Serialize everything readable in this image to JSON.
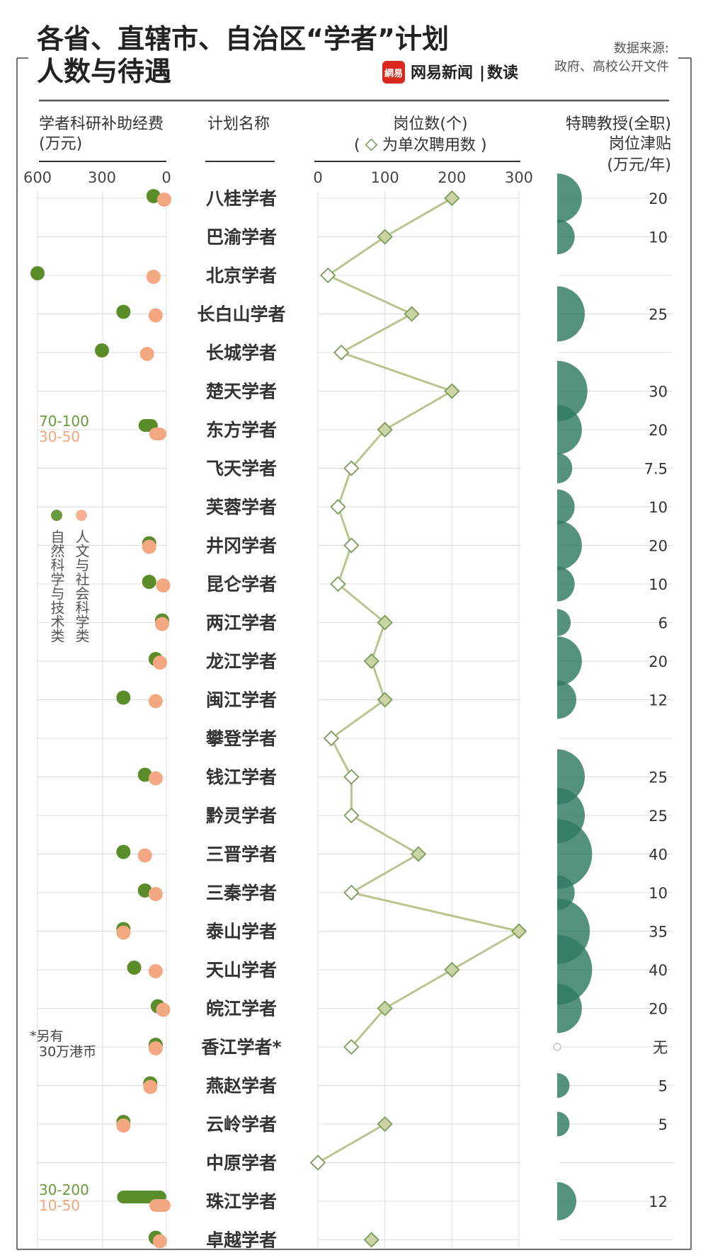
{
  "header": {
    "title_line1": "各省、直辖市、自治区“学者”计划",
    "title_line2": "人数与待遇",
    "source_label": "数据来源:",
    "source_text": "政府、高校公开文件",
    "logo_badge": "網易",
    "logo_text": "网易新闻",
    "logo_sep": "|",
    "logo_sub": "数读"
  },
  "columns": {
    "funding_title_1": "学者科研补助经费",
    "funding_title_2": "(万元)",
    "name_title": "计划名称",
    "posts_title": "岗位数(个)",
    "posts_subtitle_pre": "(",
    "posts_subtitle_post": "为单次聘用数 )",
    "allowance_title_1": "特聘教授(全职)",
    "allowance_title_2": "岗位津贴",
    "allowance_title_3": "(万元/年)"
  },
  "legend": {
    "natural": "自然科学与技术类",
    "humanities": "人文与社会科学类"
  },
  "notes": {
    "dongfang_green": "70-100",
    "dongfang_orange": "30-50",
    "xiangjiang_1": "*另有",
    "xiangjiang_2": "30万港币",
    "zhujiang_green": "30-200",
    "zhujiang_orange": "10-50"
  },
  "chart_data": {
    "type": "multi-panel dot/line/bubble",
    "colors": {
      "green": "#5b8c2a",
      "orange": "#f4a882",
      "line": "#b9c48e",
      "bubble": "#2f7a62",
      "grid": "#dcdcdc"
    },
    "funding_axis": {
      "label": "学者科研补助经费(万元)",
      "ticks": [
        "600",
        "300",
        "0"
      ],
      "range": [
        600,
        0
      ]
    },
    "posts_axis": {
      "label": "岗位数(个)",
      "ticks": [
        "0",
        "100",
        "200",
        "300"
      ],
      "range": [
        0,
        300
      ]
    },
    "rows": [
      {
        "name": "八桂学者",
        "natural": 60,
        "humanities": 10,
        "posts": 200,
        "allowance": 20,
        "allowance_label": "20"
      },
      {
        "name": "巴渝学者",
        "natural": null,
        "humanities": null,
        "posts": 100,
        "allowance": 10,
        "allowance_label": "10"
      },
      {
        "name": "北京学者",
        "natural": 600,
        "humanities": 60,
        "posts": 15,
        "allowance": null,
        "allowance_label": ""
      },
      {
        "name": "长白山学者",
        "natural": 200,
        "humanities": 50,
        "posts": 140,
        "allowance": 25,
        "allowance_label": "25"
      },
      {
        "name": "长城学者",
        "natural": 300,
        "humanities": 90,
        "posts": 35,
        "allowance": null,
        "allowance_label": ""
      },
      {
        "name": "楚天学者",
        "natural": null,
        "humanities": null,
        "posts": 200,
        "allowance": 30,
        "allowance_label": "30"
      },
      {
        "name": "东方学者",
        "natural": 85,
        "humanities": 35,
        "posts": 100,
        "allowance": 20,
        "allowance_label": "20",
        "natural_range": [
          70,
          100
        ],
        "humanities_range": [
          30,
          50
        ]
      },
      {
        "name": "飞天学者",
        "natural": null,
        "humanities": null,
        "posts": 50,
        "allowance": 7.5,
        "allowance_label": "7.5"
      },
      {
        "name": "芙蓉学者",
        "natural": null,
        "humanities": null,
        "posts": 30,
        "allowance": 10,
        "allowance_label": "10"
      },
      {
        "name": "井冈学者",
        "natural": 80,
        "humanities": 80,
        "posts": 50,
        "allowance": 20,
        "allowance_label": "20"
      },
      {
        "name": "昆仑学者",
        "natural": 80,
        "humanities": 15,
        "posts": 30,
        "allowance": 10,
        "allowance_label": "10"
      },
      {
        "name": "两江学者",
        "natural": 20,
        "humanities": 20,
        "posts": 100,
        "allowance": 6,
        "allowance_label": "6"
      },
      {
        "name": "龙江学者",
        "natural": 50,
        "humanities": 30,
        "posts": 80,
        "allowance": 20,
        "allowance_label": "20"
      },
      {
        "name": "闽江学者",
        "natural": 200,
        "humanities": 50,
        "posts": 100,
        "allowance": 12,
        "allowance_label": "12"
      },
      {
        "name": "攀登学者",
        "natural": null,
        "humanities": null,
        "posts": 20,
        "allowance": null,
        "allowance_label": ""
      },
      {
        "name": "钱江学者",
        "natural": 100,
        "humanities": 50,
        "posts": 50,
        "allowance": 25,
        "allowance_label": "25"
      },
      {
        "name": "黔灵学者",
        "natural": null,
        "humanities": null,
        "posts": 50,
        "allowance": 25,
        "allowance_label": "25"
      },
      {
        "name": "三晋学者",
        "natural": 200,
        "humanities": 100,
        "posts": 150,
        "allowance": 40,
        "allowance_label": "40"
      },
      {
        "name": "三秦学者",
        "natural": 100,
        "humanities": 50,
        "posts": 50,
        "allowance": 10,
        "allowance_label": "10"
      },
      {
        "name": "泰山学者",
        "natural": 200,
        "humanities": 200,
        "posts": 300,
        "allowance": 35,
        "allowance_label": "35"
      },
      {
        "name": "天山学者",
        "natural": 150,
        "humanities": 50,
        "posts": 200,
        "allowance": 40,
        "allowance_label": "40"
      },
      {
        "name": "皖江学者",
        "natural": 40,
        "humanities": 15,
        "posts": 100,
        "allowance": 20,
        "allowance_label": "20"
      },
      {
        "name": "香江学者*",
        "natural": 50,
        "humanities": 50,
        "posts": 50,
        "allowance": 0,
        "allowance_label": "无"
      },
      {
        "name": "燕赵学者",
        "natural": 75,
        "humanities": 75,
        "posts": null,
        "allowance": 5,
        "allowance_label": "5"
      },
      {
        "name": "云岭学者",
        "natural": 200,
        "humanities": 200,
        "posts": 100,
        "allowance": 5,
        "allowance_label": "5"
      },
      {
        "name": "中原学者",
        "natural": null,
        "humanities": null,
        "posts": 0,
        "allowance": null,
        "allowance_label": ""
      },
      {
        "name": "珠江学者",
        "natural": 115,
        "humanities": 30,
        "posts": null,
        "allowance": 12,
        "allowance_label": "12",
        "natural_range": [
          30,
          200
        ],
        "humanities_range": [
          10,
          50
        ]
      },
      {
        "name": "卓越学者",
        "natural": 50,
        "humanities": 30,
        "posts": 80,
        "allowance": null,
        "allowance_label": ""
      }
    ]
  }
}
